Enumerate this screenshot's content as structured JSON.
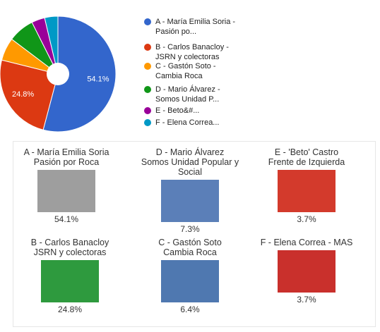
{
  "chart_data": {
    "type": "pie",
    "categories": [
      "A - María Emilia Soria - Pasión po...",
      "B - Carlos Banacloy - JSRN y colectoras",
      "C - Gastón Soto - Cambia Roca",
      "D - Mario Álvarez - Somos Unidad P...",
      "E - Beto&#...",
      "F - Elena Correa..."
    ],
    "values": [
      54.1,
      24.8,
      6.4,
      7.3,
      3.7,
      3.7
    ],
    "value_labels": [
      "54.1%",
      "24.8%",
      null,
      null,
      null,
      null
    ],
    "colors": [
      "#3366cc",
      "#dc3912",
      "#ff9900",
      "#109618",
      "#990099",
      "#0099c6"
    ],
    "legend": "right"
  },
  "cards": [
    {
      "line1": "A - María Emilia Soria",
      "line2": "Pasión por Roca",
      "percent": "54.1%",
      "color": "#9e9e9e"
    },
    {
      "line1": "D - Mario Álvarez",
      "line2": "Somos Unidad Popular y Social",
      "percent": "7.3%",
      "color": "#5b7fb8"
    },
    {
      "line1": "E - 'Beto' Castro",
      "line2": "Frente de Izquierda",
      "percent": "3.7%",
      "color": "#d33a2c"
    },
    {
      "line1": "B - Carlos Banacloy",
      "line2": "JSRN y colectoras",
      "percent": "24.8%",
      "color": "#2e9a3e"
    },
    {
      "line1": "C - Gastón Soto",
      "line2": "Cambia Roca",
      "percent": "6.4%",
      "color": "#4f78b0"
    },
    {
      "line1": "F - Elena Correa - MAS",
      "line2": null,
      "percent": "3.7%",
      "color": "#c9302c"
    }
  ]
}
